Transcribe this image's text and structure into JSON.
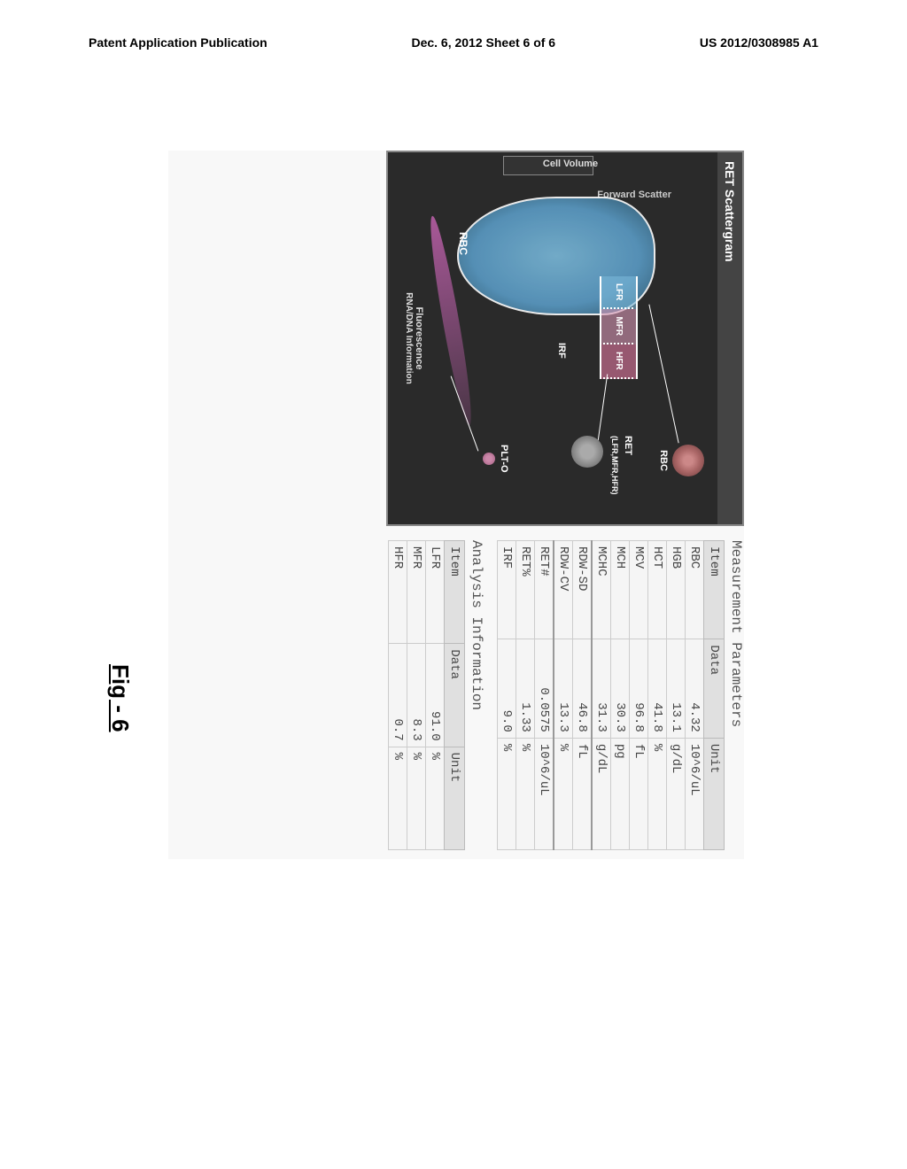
{
  "header": {
    "left": "Patent Application Publication",
    "center": "Dec. 6, 2012  Sheet 6 of 6",
    "right": "US 2012/0308985 A1"
  },
  "figure_label": "Fig - 6",
  "scattergram": {
    "title": "RET Scattergram",
    "y_axis_box": "Forward Scatter",
    "y_axis_label": "Cell Volume",
    "x_axis_label1": "Fluorescence",
    "x_axis_label2": "RNA/DNA Information",
    "zones": {
      "lfr": "LFR",
      "mfr": "MFR",
      "hfr": "HFR"
    },
    "irf": "IRF",
    "rbc_label": "RBC",
    "callout_rbc": "RBC",
    "callout_ret1": "RET",
    "callout_ret2": "(LFR,MFR,HFR)",
    "callout_plt": "PLT-O"
  },
  "measurement": {
    "title": "Measurement Parameters",
    "headers": {
      "item": "Item",
      "data": "Data",
      "unit": "Unit"
    },
    "rows": [
      {
        "item": "RBC",
        "data": "4.32",
        "unit": "10^6/uL"
      },
      {
        "item": "HGB",
        "data": "13.1",
        "unit": "g/dL"
      },
      {
        "item": "HCT",
        "data": "41.8",
        "unit": "%"
      },
      {
        "item": "MCV",
        "data": "96.8",
        "unit": "fL"
      },
      {
        "item": "MCH",
        "data": "30.3",
        "unit": "pg"
      },
      {
        "item": "MCHC",
        "data": "31.3",
        "unit": "g/dL"
      },
      {
        "item": "RDW-SD",
        "data": "46.8",
        "unit": "fL"
      },
      {
        "item": "RDW-CV",
        "data": "13.3",
        "unit": "%"
      },
      {
        "item": "RET#",
        "data": "0.0575",
        "unit": "10^6/uL"
      },
      {
        "item": "RET%",
        "data": "1.33",
        "unit": "%"
      },
      {
        "item": "IRF",
        "data": "9.0",
        "unit": "%"
      }
    ]
  },
  "analysis": {
    "title": "Analysis Information",
    "headers": {
      "item": "Item",
      "data": "Data",
      "unit": "Unit"
    },
    "rows": [
      {
        "item": "LFR",
        "data": "91.0",
        "unit": "%"
      },
      {
        "item": "MFR",
        "data": "8.3",
        "unit": "%"
      },
      {
        "item": "HFR",
        "data": "0.7",
        "unit": "%"
      }
    ]
  },
  "separators": [
    6,
    8
  ]
}
